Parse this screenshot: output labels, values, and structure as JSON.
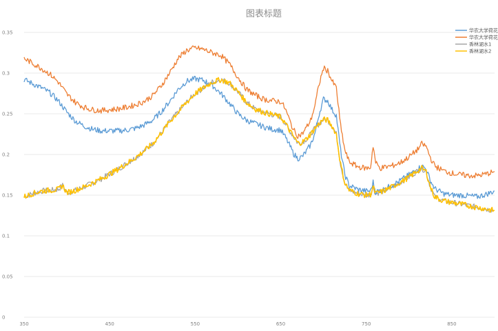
{
  "chart_data": {
    "type": "line",
    "title": "图表标题",
    "xlabel": "",
    "ylabel": "",
    "xlim": [
      350,
      900
    ],
    "ylim": [
      0,
      0.35
    ],
    "x_ticks": [
      "350",
      "450",
      "550",
      "650",
      "750",
      "850"
    ],
    "y_ticks": [
      "0",
      "0.05",
      "0.1",
      "0.15",
      "0.2",
      "0.25",
      "0.3",
      "0.35"
    ],
    "grid": "horizontal",
    "legend_position": "top-right",
    "series": [
      {
        "name": "华农大学荷花",
        "color": "#5b9bd5",
        "points": [
          [
            350,
            0.292
          ],
          [
            360,
            0.287
          ],
          [
            370,
            0.282
          ],
          [
            380,
            0.276
          ],
          [
            390,
            0.266
          ],
          [
            400,
            0.252
          ],
          [
            410,
            0.241
          ],
          [
            420,
            0.235
          ],
          [
            430,
            0.231
          ],
          [
            440,
            0.229
          ],
          [
            450,
            0.229
          ],
          [
            460,
            0.229
          ],
          [
            470,
            0.23
          ],
          [
            480,
            0.232
          ],
          [
            490,
            0.236
          ],
          [
            500,
            0.242
          ],
          [
            510,
            0.252
          ],
          [
            520,
            0.265
          ],
          [
            530,
            0.28
          ],
          [
            540,
            0.29
          ],
          [
            550,
            0.293
          ],
          [
            560,
            0.291
          ],
          [
            570,
            0.285
          ],
          [
            580,
            0.275
          ],
          [
            590,
            0.263
          ],
          [
            600,
            0.25
          ],
          [
            610,
            0.242
          ],
          [
            620,
            0.238
          ],
          [
            630,
            0.234
          ],
          [
            640,
            0.231
          ],
          [
            650,
            0.23
          ],
          [
            655,
            0.222
          ],
          [
            660,
            0.212
          ],
          [
            665,
            0.201
          ],
          [
            670,
            0.195
          ],
          [
            675,
            0.197
          ],
          [
            680,
            0.204
          ],
          [
            685,
            0.212
          ],
          [
            690,
            0.226
          ],
          [
            695,
            0.25
          ],
          [
            700,
            0.268
          ],
          [
            705,
            0.266
          ],
          [
            710,
            0.255
          ],
          [
            715,
            0.248
          ],
          [
            720,
            0.205
          ],
          [
            725,
            0.175
          ],
          [
            730,
            0.162
          ],
          [
            740,
            0.157
          ],
          [
            750,
            0.155
          ],
          [
            755,
            0.155
          ],
          [
            758,
            0.166
          ],
          [
            761,
            0.154
          ],
          [
            770,
            0.157
          ],
          [
            780,
            0.162
          ],
          [
            790,
            0.168
          ],
          [
            800,
            0.175
          ],
          [
            810,
            0.182
          ],
          [
            815,
            0.186
          ],
          [
            820,
            0.182
          ],
          [
            825,
            0.168
          ],
          [
            830,
            0.158
          ],
          [
            840,
            0.152
          ],
          [
            850,
            0.15
          ],
          [
            860,
            0.15
          ],
          [
            870,
            0.149
          ],
          [
            880,
            0.148
          ],
          [
            890,
            0.151
          ],
          [
            900,
            0.155
          ]
        ]
      },
      {
        "name": "华农大学荷花",
        "color": "#ed7d31",
        "points": [
          [
            350,
            0.318
          ],
          [
            360,
            0.312
          ],
          [
            370,
            0.306
          ],
          [
            380,
            0.299
          ],
          [
            390,
            0.289
          ],
          [
            400,
            0.274
          ],
          [
            410,
            0.264
          ],
          [
            420,
            0.258
          ],
          [
            430,
            0.255
          ],
          [
            440,
            0.254
          ],
          [
            450,
            0.255
          ],
          [
            460,
            0.256
          ],
          [
            470,
            0.258
          ],
          [
            480,
            0.261
          ],
          [
            490,
            0.265
          ],
          [
            500,
            0.272
          ],
          [
            510,
            0.284
          ],
          [
            520,
            0.3
          ],
          [
            530,
            0.318
          ],
          [
            540,
            0.328
          ],
          [
            550,
            0.331
          ],
          [
            560,
            0.329
          ],
          [
            570,
            0.325
          ],
          [
            580,
            0.322
          ],
          [
            590,
            0.311
          ],
          [
            600,
            0.295
          ],
          [
            610,
            0.28
          ],
          [
            620,
            0.273
          ],
          [
            630,
            0.268
          ],
          [
            640,
            0.266
          ],
          [
            650,
            0.265
          ],
          [
            655,
            0.257
          ],
          [
            660,
            0.243
          ],
          [
            665,
            0.23
          ],
          [
            670,
            0.223
          ],
          [
            675,
            0.225
          ],
          [
            680,
            0.233
          ],
          [
            685,
            0.242
          ],
          [
            690,
            0.26
          ],
          [
            695,
            0.287
          ],
          [
            700,
            0.306
          ],
          [
            705,
            0.303
          ],
          [
            710,
            0.29
          ],
          [
            715,
            0.282
          ],
          [
            720,
            0.235
          ],
          [
            725,
            0.205
          ],
          [
            730,
            0.191
          ],
          [
            740,
            0.185
          ],
          [
            750,
            0.183
          ],
          [
            755,
            0.184
          ],
          [
            758,
            0.211
          ],
          [
            761,
            0.19
          ],
          [
            766,
            0.183
          ],
          [
            770,
            0.184
          ],
          [
            780,
            0.186
          ],
          [
            790,
            0.19
          ],
          [
            800,
            0.197
          ],
          [
            810,
            0.206
          ],
          [
            815,
            0.213
          ],
          [
            820,
            0.21
          ],
          [
            825,
            0.196
          ],
          [
            830,
            0.186
          ],
          [
            840,
            0.18
          ],
          [
            850,
            0.177
          ],
          [
            860,
            0.175
          ],
          [
            870,
            0.174
          ],
          [
            880,
            0.174
          ],
          [
            890,
            0.176
          ],
          [
            900,
            0.179
          ]
        ]
      },
      {
        "name": "香林湖水1",
        "color": "#a5a5a5",
        "points": [
          [
            350,
            0.148
          ],
          [
            360,
            0.152
          ],
          [
            370,
            0.155
          ],
          [
            380,
            0.156
          ],
          [
            390,
            0.157
          ],
          [
            395,
            0.162
          ],
          [
            400,
            0.153
          ],
          [
            410,
            0.156
          ],
          [
            420,
            0.16
          ],
          [
            430,
            0.165
          ],
          [
            440,
            0.17
          ],
          [
            450,
            0.176
          ],
          [
            460,
            0.182
          ],
          [
            470,
            0.189
          ],
          [
            480,
            0.196
          ],
          [
            490,
            0.204
          ],
          [
            500,
            0.213
          ],
          [
            510,
            0.226
          ],
          [
            520,
            0.24
          ],
          [
            530,
            0.252
          ],
          [
            540,
            0.264
          ],
          [
            550,
            0.275
          ],
          [
            560,
            0.282
          ],
          [
            570,
            0.289
          ],
          [
            580,
            0.292
          ],
          [
            590,
            0.288
          ],
          [
            600,
            0.277
          ],
          [
            610,
            0.264
          ],
          [
            620,
            0.256
          ],
          [
            630,
            0.252
          ],
          [
            640,
            0.249
          ],
          [
            650,
            0.246
          ],
          [
            655,
            0.239
          ],
          [
            660,
            0.23
          ],
          [
            665,
            0.222
          ],
          [
            670,
            0.214
          ],
          [
            675,
            0.215
          ],
          [
            680,
            0.219
          ],
          [
            685,
            0.225
          ],
          [
            690,
            0.232
          ],
          [
            695,
            0.238
          ],
          [
            700,
            0.243
          ],
          [
            705,
            0.242
          ],
          [
            710,
            0.235
          ],
          [
            715,
            0.225
          ],
          [
            720,
            0.188
          ],
          [
            725,
            0.165
          ],
          [
            730,
            0.156
          ],
          [
            740,
            0.152
          ],
          [
            750,
            0.15
          ],
          [
            755,
            0.151
          ],
          [
            758,
            0.16
          ],
          [
            761,
            0.152
          ],
          [
            770,
            0.155
          ],
          [
            780,
            0.16
          ],
          [
            790,
            0.166
          ],
          [
            800,
            0.172
          ],
          [
            810,
            0.18
          ],
          [
            815,
            0.183
          ],
          [
            820,
            0.179
          ],
          [
            825,
            0.16
          ],
          [
            830,
            0.148
          ],
          [
            840,
            0.143
          ],
          [
            850,
            0.141
          ],
          [
            860,
            0.139
          ],
          [
            870,
            0.137
          ],
          [
            880,
            0.135
          ],
          [
            890,
            0.133
          ],
          [
            900,
            0.131
          ]
        ]
      },
      {
        "name": "香林湖水2",
        "color": "#ffc000",
        "points": [
          [
            350,
            0.148
          ],
          [
            360,
            0.152
          ],
          [
            370,
            0.155
          ],
          [
            380,
            0.156
          ],
          [
            390,
            0.157
          ],
          [
            395,
            0.162
          ],
          [
            400,
            0.153
          ],
          [
            410,
            0.156
          ],
          [
            420,
            0.16
          ],
          [
            430,
            0.165
          ],
          [
            440,
            0.17
          ],
          [
            450,
            0.176
          ],
          [
            460,
            0.182
          ],
          [
            470,
            0.189
          ],
          [
            480,
            0.196
          ],
          [
            490,
            0.204
          ],
          [
            500,
            0.213
          ],
          [
            510,
            0.226
          ],
          [
            520,
            0.24
          ],
          [
            530,
            0.252
          ],
          [
            540,
            0.264
          ],
          [
            550,
            0.275
          ],
          [
            560,
            0.282
          ],
          [
            570,
            0.289
          ],
          [
            580,
            0.292
          ],
          [
            590,
            0.288
          ],
          [
            600,
            0.277
          ],
          [
            610,
            0.264
          ],
          [
            620,
            0.256
          ],
          [
            630,
            0.252
          ],
          [
            640,
            0.249
          ],
          [
            650,
            0.246
          ],
          [
            655,
            0.239
          ],
          [
            660,
            0.23
          ],
          [
            665,
            0.222
          ],
          [
            670,
            0.214
          ],
          [
            675,
            0.215
          ],
          [
            680,
            0.219
          ],
          [
            685,
            0.225
          ],
          [
            690,
            0.232
          ],
          [
            695,
            0.238
          ],
          [
            700,
            0.243
          ],
          [
            705,
            0.242
          ],
          [
            710,
            0.235
          ],
          [
            715,
            0.225
          ],
          [
            720,
            0.188
          ],
          [
            725,
            0.165
          ],
          [
            730,
            0.156
          ],
          [
            740,
            0.152
          ],
          [
            750,
            0.15
          ],
          [
            755,
            0.151
          ],
          [
            758,
            0.16
          ],
          [
            761,
            0.152
          ],
          [
            770,
            0.155
          ],
          [
            780,
            0.16
          ],
          [
            790,
            0.166
          ],
          [
            800,
            0.172
          ],
          [
            810,
            0.18
          ],
          [
            815,
            0.183
          ],
          [
            820,
            0.179
          ],
          [
            825,
            0.16
          ],
          [
            830,
            0.148
          ],
          [
            840,
            0.143
          ],
          [
            850,
            0.141
          ],
          [
            860,
            0.139
          ],
          [
            870,
            0.137
          ],
          [
            880,
            0.135
          ],
          [
            890,
            0.133
          ],
          [
            900,
            0.131
          ]
        ]
      }
    ]
  }
}
